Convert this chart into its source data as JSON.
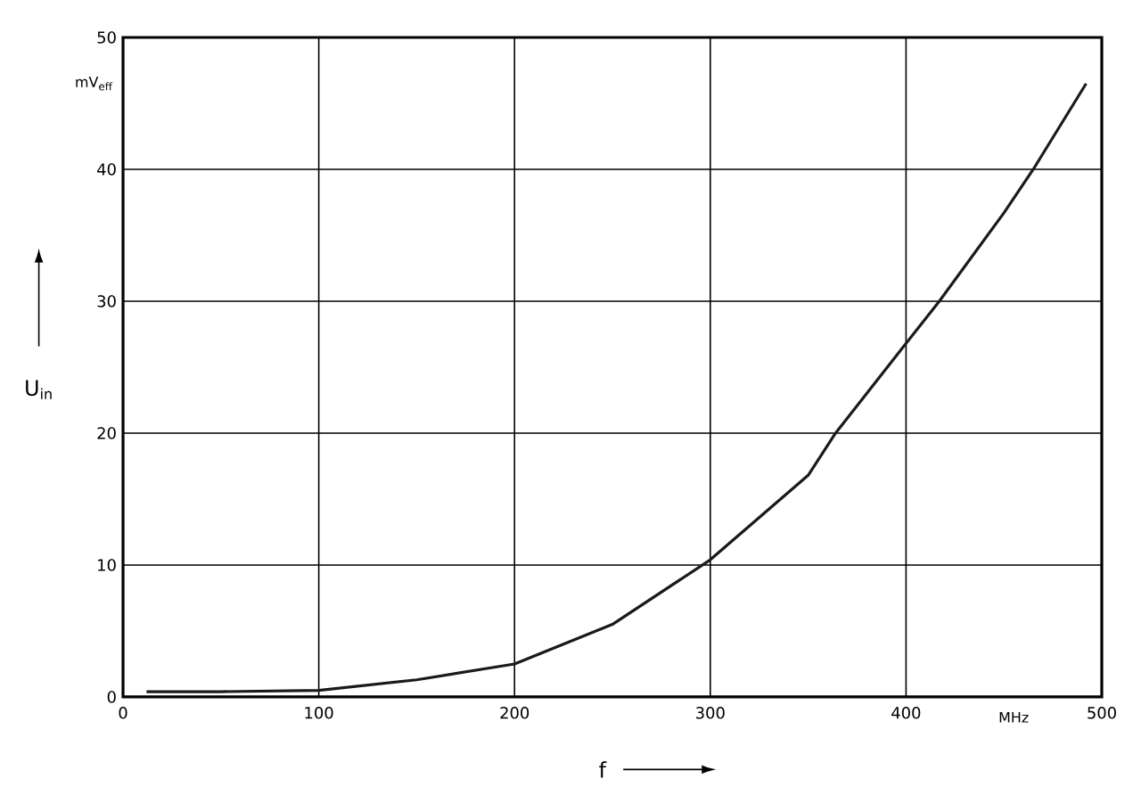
{
  "chart_data": {
    "type": "line",
    "xlabel": "f",
    "ylabel": "U$_{in}$",
    "annotations": [
      "mV$_{eff}$",
      "MHz"
    ],
    "x": [
      12,
      50,
      100,
      150,
      200,
      250,
      300,
      350,
      364,
      400,
      417,
      450,
      465,
      492
    ],
    "series": [
      {
        "color": "#1a1a1a",
        "values": [
          0.4,
          0.4,
          0.5,
          1.3,
          2.5,
          5.5,
          10.4,
          16.8,
          20,
          26.8,
          30,
          36.7,
          40,
          46.5
        ]
      }
    ],
    "xlim": [
      0,
      500
    ],
    "ylim": [
      0,
      50
    ],
    "xticks": [
      0,
      100,
      200,
      300,
      400,
      500
    ],
    "yticks": [
      0,
      10,
      20,
      30,
      40,
      50
    ],
    "grid": true,
    "marker": "none",
    "line_style": "solid"
  }
}
